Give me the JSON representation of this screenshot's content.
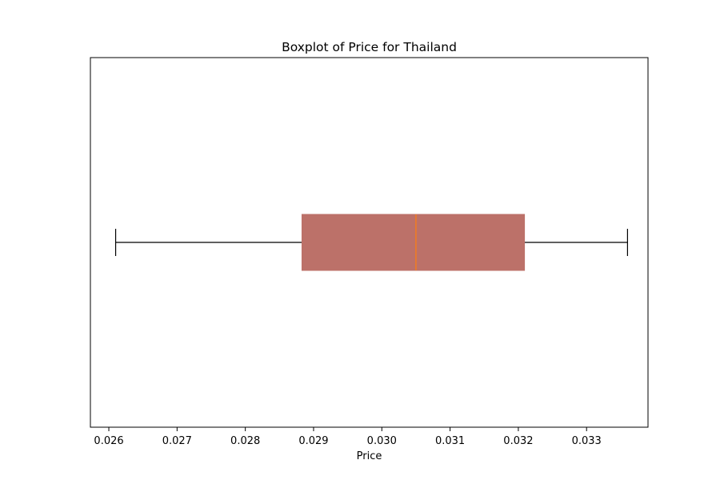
{
  "chart_data": {
    "type": "boxplot",
    "title": "Boxplot of Price for Thailand",
    "xlabel": "Price",
    "ylabel": "",
    "orientation": "horizontal",
    "xlim": [
      0.02573,
      0.0339
    ],
    "xticks": [
      0.026,
      0.027,
      0.028,
      0.029,
      0.03,
      0.031,
      0.032,
      0.033
    ],
    "xtick_labels": [
      "0.026",
      "0.027",
      "0.028",
      "0.029",
      "0.030",
      "0.031",
      "0.032",
      "0.033"
    ],
    "grid": false,
    "box": {
      "whisker_low": 0.0261,
      "q1": 0.02883,
      "median": 0.0305,
      "q3": 0.03209,
      "whisker_high": 0.0336
    },
    "colors": {
      "box_fill": "#bc7169",
      "median_line": "#ff7f0e",
      "lines": "#000000"
    }
  }
}
